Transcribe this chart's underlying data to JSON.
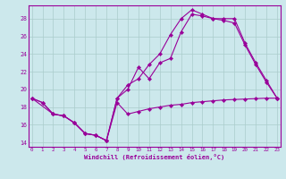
{
  "xlabel": "Windchill (Refroidissement éolien,°C)",
  "bg_color": "#cce8ec",
  "line_color": "#990099",
  "grid_color": "#aacccc",
  "series1_x": [
    0,
    1,
    2,
    3,
    4,
    5,
    6,
    7,
    8,
    9,
    10,
    11,
    12,
    13,
    14,
    15,
    16,
    17,
    18,
    19,
    20,
    21,
    22,
    23
  ],
  "series1_y": [
    19.0,
    18.5,
    17.2,
    17.0,
    16.2,
    15.0,
    14.8,
    14.2,
    18.5,
    17.2,
    17.5,
    17.8,
    18.0,
    18.2,
    18.3,
    18.5,
    18.6,
    18.7,
    18.8,
    18.85,
    18.9,
    18.95,
    19.0,
    19.0
  ],
  "series2_x": [
    0,
    1,
    2,
    3,
    4,
    5,
    6,
    7,
    8,
    9,
    10,
    11,
    12,
    13,
    14,
    15,
    16,
    17,
    18,
    19,
    20,
    21,
    22,
    23
  ],
  "series2_y": [
    19.0,
    18.5,
    17.2,
    17.0,
    16.2,
    15.0,
    14.8,
    14.2,
    19.0,
    20.5,
    21.2,
    22.8,
    24.0,
    26.2,
    28.0,
    29.0,
    28.5,
    28.0,
    27.8,
    27.5,
    25.0,
    22.8,
    20.8,
    19.0
  ],
  "series3_x": [
    0,
    2,
    3,
    4,
    5,
    6,
    7,
    8,
    9,
    10,
    11,
    12,
    13,
    14,
    15,
    16,
    17,
    18,
    19,
    20,
    21,
    22,
    23
  ],
  "series3_y": [
    19.0,
    17.2,
    17.0,
    16.2,
    15.0,
    14.8,
    14.2,
    19.0,
    20.0,
    22.5,
    21.2,
    23.0,
    23.5,
    26.5,
    28.5,
    28.3,
    28.0,
    28.0,
    28.0,
    25.2,
    23.0,
    21.0,
    19.0
  ],
  "ylim": [
    13.5,
    29.5
  ],
  "yticks": [
    14,
    16,
    18,
    20,
    22,
    24,
    26,
    28
  ],
  "xlim": [
    -0.3,
    23.3
  ],
  "xticks": [
    0,
    1,
    2,
    3,
    4,
    5,
    6,
    7,
    8,
    9,
    10,
    11,
    12,
    13,
    14,
    15,
    16,
    17,
    18,
    19,
    20,
    21,
    22,
    23
  ]
}
